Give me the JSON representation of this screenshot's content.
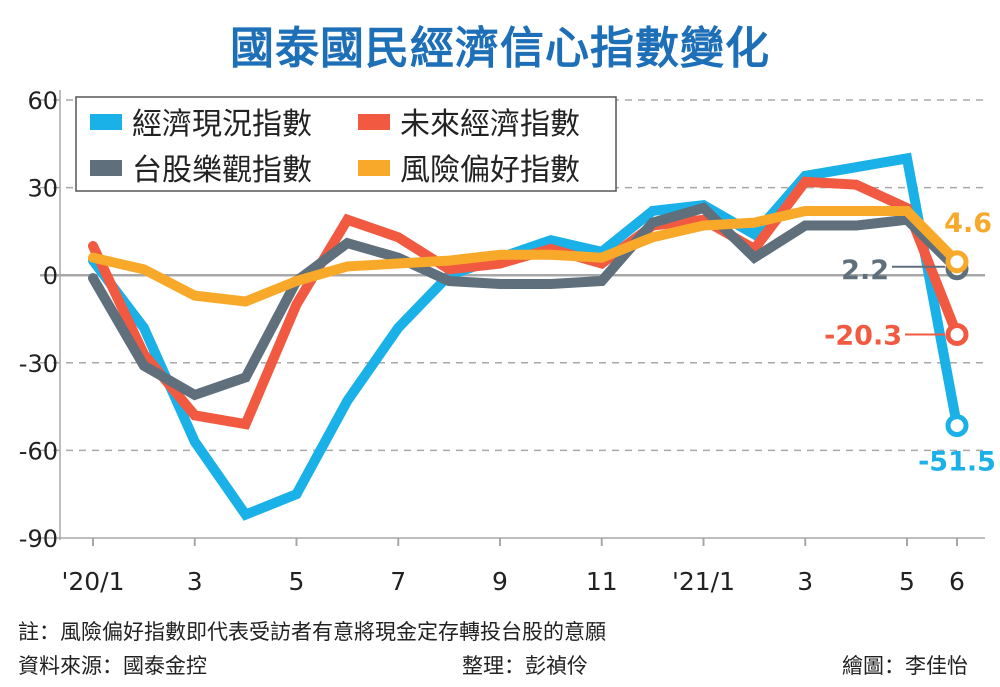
{
  "chart_data": {
    "type": "line",
    "title": "國泰國民經濟信心指數變化",
    "x": [
      "'20/1",
      "2",
      "3",
      "4",
      "5",
      "6",
      "7",
      "8",
      "9",
      "10",
      "11",
      "12",
      "'21/1",
      "2",
      "3",
      "4",
      "5",
      "6"
    ],
    "x_tick_labels": [
      "'20/1",
      "",
      "3",
      "",
      "5",
      "",
      "7",
      "",
      "9",
      "",
      "11",
      "",
      "'21/1",
      "",
      "3",
      "",
      "5",
      "6"
    ],
    "ylim": [
      -90,
      60
    ],
    "y_ticks": [
      60,
      30,
      0,
      -30,
      -60,
      -90
    ],
    "grid": "horizontal dashed",
    "legend": "top-left",
    "series": [
      {
        "name": "經濟現況指數",
        "color": "#1ab0e8",
        "values": [
          5,
          -18,
          -57,
          -82,
          -75,
          -43,
          -18,
          0,
          6,
          12,
          8,
          22,
          24,
          14,
          34,
          37,
          40,
          -51.5
        ],
        "end_label": "-51.5"
      },
      {
        "name": "未來經濟指數",
        "color": "#f15a40",
        "values": [
          10,
          -27,
          -48,
          -51,
          -10,
          19,
          13,
          2,
          4,
          9,
          4,
          17,
          19,
          9,
          32,
          31,
          23,
          -20.3
        ],
        "end_label": "-20.3"
      },
      {
        "name": "台股樂觀指數",
        "color": "#5f6f7c",
        "values": [
          -1,
          -31,
          -41,
          -35,
          -2,
          11,
          6,
          -2,
          -3,
          -3,
          -2,
          18,
          23,
          6,
          17,
          17,
          19,
          2.2
        ],
        "end_label": "2.2"
      },
      {
        "name": "風險偏好指數",
        "color": "#f9a92a",
        "values": [
          6,
          2,
          -7,
          -9,
          -2,
          3,
          4,
          5,
          7,
          7,
          6,
          13,
          17,
          18,
          22,
          22,
          22,
          4.6
        ],
        "end_label": "4.6"
      }
    ]
  },
  "footer": {
    "note": "註：風險偏好指數即代表受訪者有意將現金定存轉投台股的意願",
    "source": "資料來源：國泰金控",
    "editor": "整理：彭禎伶",
    "artist": "繪圖：李佳怡"
  }
}
